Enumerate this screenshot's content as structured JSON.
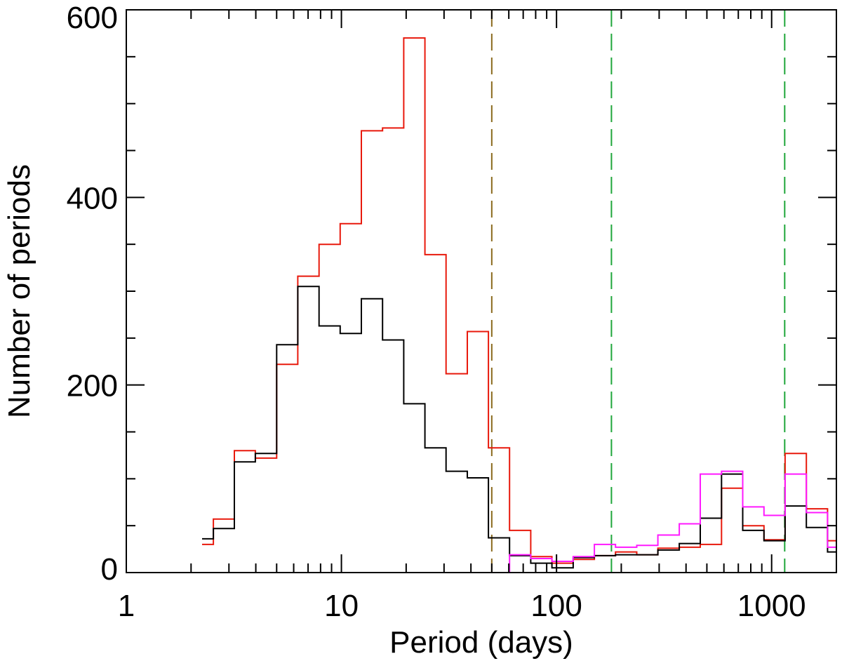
{
  "chart_data": {
    "type": "line",
    "step": true,
    "x_scale": "log",
    "xlabel": "Period (days)",
    "ylabel": "Number of periods",
    "xlim": [
      1,
      2000
    ],
    "ylim": [
      0,
      600
    ],
    "x_ticks": [
      {
        "value": 1,
        "label": "1"
      },
      {
        "value": 10,
        "label": "10"
      },
      {
        "value": 100,
        "label": "100"
      },
      {
        "value": 1000,
        "label": "1000"
      }
    ],
    "y_ticks": [
      {
        "value": 0,
        "label": "0"
      },
      {
        "value": 200,
        "label": "200"
      },
      {
        "value": 400,
        "label": "400"
      },
      {
        "value": 600,
        "label": "600"
      }
    ],
    "bin_edges": [
      2.25,
      2.54,
      3.18,
      3.98,
      5.0,
      6.27,
      7.87,
      9.87,
      12.38,
      15.53,
      19.48,
      24.44,
      30.66,
      38.47,
      48.26,
      60.5,
      75.9,
      95.2,
      119.5,
      150,
      188,
      236,
      296,
      372,
      466,
      585,
      734,
      921,
      1155,
      1450,
      1820,
      2000
    ],
    "series": [
      {
        "color": "#e8190c",
        "values": [
          30,
          57,
          130,
          122,
          222,
          316,
          350,
          372,
          471,
          474,
          570,
          339,
          212,
          257,
          133,
          45,
          17,
          10,
          14,
          18,
          22,
          19,
          26,
          27,
          30,
          90,
          50,
          35,
          127,
          68,
          34,
          null
        ]
      },
      {
        "color": "#000000",
        "values": [
          36,
          47,
          118,
          127,
          243,
          305,
          263,
          255,
          292,
          248,
          180,
          133,
          108,
          101,
          37,
          18,
          10,
          5,
          16,
          18,
          19,
          19,
          24,
          31,
          58,
          105,
          45,
          34,
          71,
          48,
          22,
          null
        ]
      },
      {
        "color": "#ff19ff",
        "values": [
          null,
          null,
          null,
          null,
          null,
          null,
          null,
          null,
          null,
          null,
          null,
          null,
          null,
          null,
          0,
          19,
          15,
          12,
          17,
          30,
          27,
          29,
          40,
          52,
          105,
          108,
          70,
          61,
          105,
          64,
          27,
          27
        ]
      }
    ],
    "reference_lines": [
      {
        "x": 50,
        "color": "#8b6a1e",
        "style": "dashed"
      },
      {
        "x": 180,
        "color": "#1fa63a",
        "style": "dashed"
      },
      {
        "x": 1150,
        "color": "#1fa63a",
        "style": "dashed"
      }
    ]
  }
}
